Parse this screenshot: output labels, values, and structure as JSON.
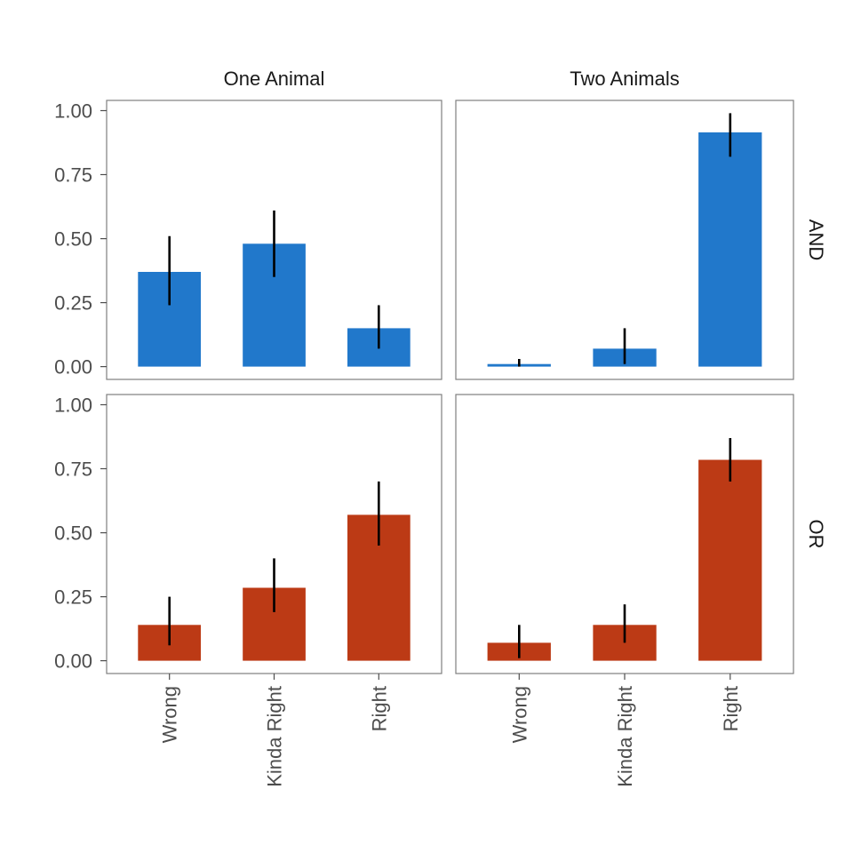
{
  "chart_data": {
    "type": "bar",
    "facet_columns": [
      "One Animal",
      "Two Animals"
    ],
    "facet_rows": [
      "AND",
      "OR"
    ],
    "categories": [
      "Wrong",
      "Kinda Right",
      "Right"
    ],
    "y_ticks": [
      "0.00",
      "0.25",
      "0.50",
      "0.75",
      "1.00"
    ],
    "ylim": [
      -0.05,
      1.04
    ],
    "grid": false,
    "legend": "none",
    "row_colors": {
      "AND": "#2178CB",
      "OR": "#BC3A15"
    },
    "panels": [
      {
        "column": "One Animal",
        "row": "AND",
        "values": [
          0.37,
          0.48,
          0.15
        ],
        "err_low": [
          0.24,
          0.35,
          0.07
        ],
        "err_high": [
          0.51,
          0.61,
          0.24
        ]
      },
      {
        "column": "Two Animals",
        "row": "AND",
        "values": [
          0.01,
          0.07,
          0.915
        ],
        "err_low": [
          0.0,
          0.01,
          0.82
        ],
        "err_high": [
          0.03,
          0.15,
          0.99
        ]
      },
      {
        "column": "One Animal",
        "row": "OR",
        "values": [
          0.14,
          0.285,
          0.57
        ],
        "err_low": [
          0.06,
          0.19,
          0.45
        ],
        "err_high": [
          0.25,
          0.4,
          0.7
        ]
      },
      {
        "column": "Two Animals",
        "row": "OR",
        "values": [
          0.07,
          0.14,
          0.785
        ],
        "err_low": [
          0.01,
          0.07,
          0.7
        ],
        "err_high": [
          0.14,
          0.22,
          0.87
        ]
      }
    ]
  }
}
